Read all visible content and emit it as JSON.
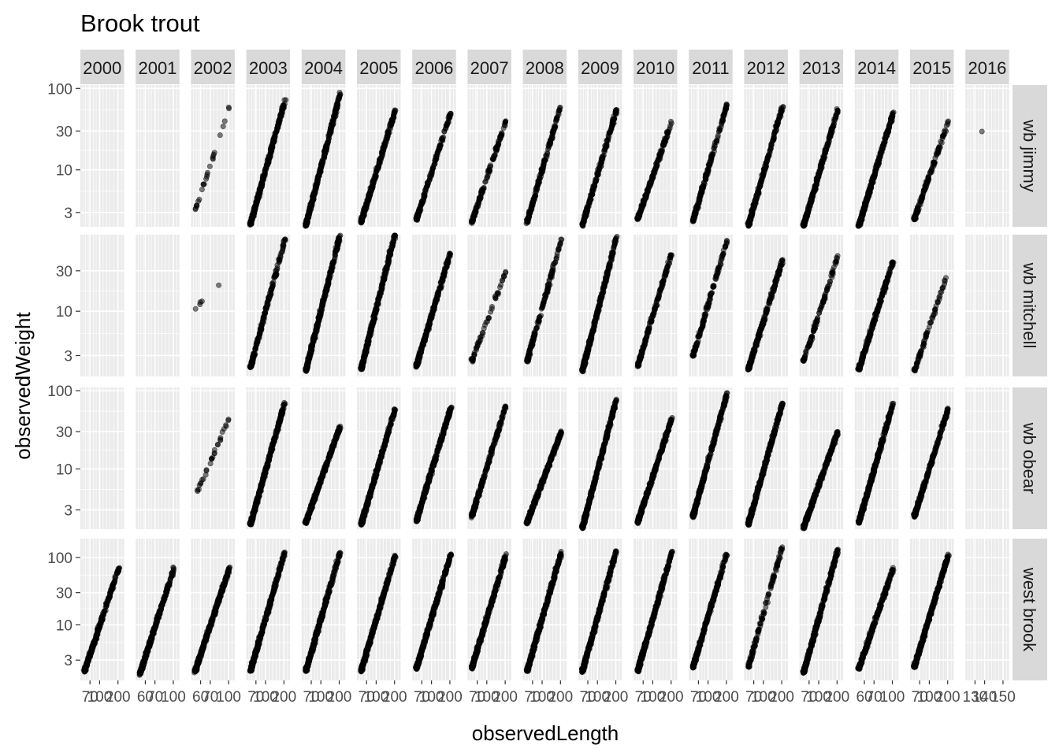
{
  "chart_data": {
    "type": "scatter",
    "title": "Brook trout",
    "xlabel": "observedLength",
    "ylabel": "observedWeight",
    "y_scale": "log10",
    "facet_columns": [
      "2000",
      "2001",
      "2002",
      "2003",
      "2004",
      "2005",
      "2006",
      "2007",
      "2008",
      "2009",
      "2010",
      "2011",
      "2012",
      "2013",
      "2014",
      "2015",
      "2016"
    ],
    "facet_rows": [
      "wb jimmy",
      "wb mitchell",
      "wb obear",
      "west brook"
    ],
    "row_y_ticks": [
      [
        "100",
        "30",
        "10",
        "3"
      ],
      [
        "30",
        "10",
        "3"
      ],
      [
        "100",
        "30",
        "10",
        "3"
      ],
      [
        "100",
        "30",
        "10",
        "3"
      ]
    ],
    "x_tick_labels": [
      "70",
      "100",
      "200",
      "70",
      "100",
      "200",
      "70",
      "100",
      "200",
      "70",
      "100",
      "200",
      "70",
      "100",
      "200",
      "70",
      "100",
      "200",
      "70",
      "100",
      "200",
      "70",
      "100",
      "200",
      "70",
      "100",
      "200",
      "70",
      "100",
      "200",
      "70",
      "100",
      "200",
      "70",
      "100",
      "200",
      "70",
      "100",
      "200",
      "70",
      "100",
      "200",
      "70",
      "100",
      "200",
      "70",
      "100",
      "200",
      "70",
      "100",
      "200",
      "70",
      "100",
      "200",
      "70",
      "100",
      "200",
      "70",
      "100",
      "200",
      "70",
      "100",
      "200",
      "70",
      "100",
      "200",
      "70",
      "100",
      "200",
      "70",
      "100",
      "200",
      "70",
      "100",
      "200",
      "70",
      "100",
      "200",
      "70",
      "100",
      "200",
      "70",
      "100",
      "200",
      "70",
      "100",
      "200",
      "70",
      "100",
      "200",
      "70",
      "100",
      "200",
      "70",
      "100",
      "200",
      "70",
      "100",
      "200",
      "70",
      "100",
      "200",
      "70",
      "100",
      "200",
      "70",
      "100",
      "200",
      "70",
      "100",
      "200",
      "70",
      "100",
      "200",
      "70",
      "100",
      "200",
      "70",
      "100",
      "200",
      "70",
      "100",
      "200",
      "70",
      "100",
      "200",
      "70",
      "100",
      "200",
      "70",
      "100",
      "200",
      "70",
      "100",
      "200",
      "70",
      "100",
      "200",
      "70",
      "100",
      "200",
      "70",
      "100",
      "200",
      "70",
      "100",
      "200",
      "70",
      "100",
      "200",
      "70",
      "100",
      "200",
      "70",
      "100",
      "200",
      "70",
      "100",
      "200",
      "70",
      "100",
      "200",
      "70",
      "100",
      "200",
      "70",
      "100",
      "200",
      "70",
      "100",
      "200",
      "70",
      "100",
      "200",
      "70",
      "100",
      "200",
      "70",
      "100",
      "200",
      "70",
      "100",
      "200",
      "70",
      "100",
      "200",
      "70",
      "100",
      "200",
      "70",
      "100",
      "200",
      "70",
      "100",
      "200",
      "70",
      "100",
      "200",
      "70",
      "100",
      "200",
      "70",
      "100",
      "200",
      "70",
      "100",
      "200",
      "70",
      "100",
      "200",
      "70",
      "100",
      "200",
      "70",
      "100",
      "200",
      "70",
      "100",
      "200",
      "70",
      "100",
      "200",
      "70",
      "100",
      "200",
      "70",
      "100",
      "200",
      "70",
      "100",
      "200",
      "70",
      "100",
      "200",
      "70",
      "100",
      "200",
      "70",
      "100",
      "200",
      "70",
      "100",
      "200",
      "70",
      "100",
      "200",
      "70",
      "100",
      "200",
      "70",
      "100",
      "200",
      "70",
      "100",
      "200",
      "70",
      "100",
      "200",
      "70",
      "100",
      "200",
      "70",
      "100",
      "200",
      "70",
      "100",
      "200",
      "70",
      "100",
      "200",
      "70",
      "100",
      "200",
      "70",
      "100",
      "200",
      "70",
      "100",
      "200",
      "70",
      "100",
      "200",
      "70",
      "100",
      "200",
      "70",
      "100",
      "200",
      "70",
      "100",
      "200",
      "70",
      "100",
      "200",
      "70",
      "100",
      "200",
      "70",
      "100",
      "200",
      "70",
      "100",
      "200",
      "70",
      "100",
      "200",
      "70",
      "100",
      "200",
      "70",
      "100",
      "200",
      "70",
      "100",
      "200",
      "70",
      "100",
      "200",
      "70",
      "100",
      "200",
      "70",
      "100",
      "200",
      "70",
      "100",
      "200",
      "70",
      "100",
      "200",
      "70",
      "100",
      "200",
      "70",
      "100",
      "200",
      "70",
      "100",
      "200",
      "70",
      "100",
      "200"
    ],
    "x_tick_text": [
      "70",
      "100",
      "200",
      "60",
      "70",
      "100",
      "60",
      "70",
      "100",
      "70",
      "100",
      "200",
      "70",
      "100",
      "200",
      "70",
      "100",
      "200",
      "70",
      "100",
      "200",
      "70",
      "100",
      "200",
      "70",
      "100",
      "200",
      "70",
      "100",
      "200",
      "70",
      "100",
      "200",
      "70",
      "100",
      "200",
      "70",
      "100",
      "200",
      "70",
      "100",
      "200",
      "60",
      "70",
      "100",
      "70",
      "100",
      "200",
      "130",
      "140",
      "150"
    ],
    "panels": [
      {
        "row": 0,
        "col": 2,
        "range": [
          3.2,
          60
        ],
        "n": 26
      },
      {
        "row": 0,
        "col": 3,
        "range": [
          2.2,
          70
        ],
        "n": 500
      },
      {
        "row": 0,
        "col": 4,
        "range": [
          2.1,
          85
        ],
        "n": 600
      },
      {
        "row": 0,
        "col": 5,
        "range": [
          2.3,
          55
        ],
        "n": 320
      },
      {
        "row": 0,
        "col": 6,
        "range": [
          2.5,
          50
        ],
        "n": 180
      },
      {
        "row": 0,
        "col": 7,
        "range": [
          2.3,
          40
        ],
        "n": 150
      },
      {
        "row": 0,
        "col": 8,
        "range": [
          2.3,
          65
        ],
        "n": 200
      },
      {
        "row": 0,
        "col": 9,
        "range": [
          2.1,
          55
        ],
        "n": 220
      },
      {
        "row": 0,
        "col": 10,
        "range": [
          2.5,
          40
        ],
        "n": 200
      },
      {
        "row": 0,
        "col": 11,
        "range": [
          2.4,
          65
        ],
        "n": 220
      },
      {
        "row": 0,
        "col": 12,
        "range": [
          2.1,
          60
        ],
        "n": 280
      },
      {
        "row": 0,
        "col": 13,
        "range": [
          2.1,
          55
        ],
        "n": 340
      },
      {
        "row": 0,
        "col": 14,
        "range": [
          2.1,
          50
        ],
        "n": 450
      },
      {
        "row": 0,
        "col": 15,
        "range": [
          2.5,
          40
        ],
        "n": 140
      },
      {
        "row": 0,
        "col": 16,
        "range": [
          29,
          29
        ],
        "n": 1
      },
      {
        "row": 1,
        "col": 2,
        "range": [
          11,
          27
        ],
        "n": 5
      },
      {
        "row": 1,
        "col": 3,
        "range": [
          2.2,
          70
        ],
        "n": 220
      },
      {
        "row": 1,
        "col": 4,
        "range": [
          2.0,
          80
        ],
        "n": 550
      },
      {
        "row": 1,
        "col": 5,
        "range": [
          2.1,
          85
        ],
        "n": 650
      },
      {
        "row": 1,
        "col": 6,
        "range": [
          2.3,
          50
        ],
        "n": 350
      },
      {
        "row": 1,
        "col": 7,
        "range": [
          2.6,
          30
        ],
        "n": 60
      },
      {
        "row": 1,
        "col": 8,
        "range": [
          2.6,
          70
        ],
        "n": 180
      },
      {
        "row": 1,
        "col": 9,
        "range": [
          2.0,
          75
        ],
        "n": 450
      },
      {
        "row": 1,
        "col": 10,
        "range": [
          2.3,
          50
        ],
        "n": 190
      },
      {
        "row": 1,
        "col": 11,
        "range": [
          3.0,
          70
        ],
        "n": 150
      },
      {
        "row": 1,
        "col": 12,
        "range": [
          2.1,
          40
        ],
        "n": 280
      },
      {
        "row": 1,
        "col": 13,
        "range": [
          2.6,
          45
        ],
        "n": 120
      },
      {
        "row": 1,
        "col": 14,
        "range": [
          2.1,
          40
        ],
        "n": 300
      },
      {
        "row": 1,
        "col": 15,
        "range": [
          2.0,
          30
        ],
        "n": 80
      },
      {
        "row": 2,
        "col": 2,
        "range": [
          4.5,
          45
        ],
        "n": 30
      },
      {
        "row": 2,
        "col": 3,
        "range": [
          2.0,
          70
        ],
        "n": 600
      },
      {
        "row": 2,
        "col": 4,
        "range": [
          2.1,
          35
        ],
        "n": 700
      },
      {
        "row": 2,
        "col": 5,
        "range": [
          2.0,
          60
        ],
        "n": 700
      },
      {
        "row": 2,
        "col": 6,
        "range": [
          2.2,
          60
        ],
        "n": 400
      },
      {
        "row": 2,
        "col": 7,
        "range": [
          2.5,
          65
        ],
        "n": 250
      },
      {
        "row": 2,
        "col": 8,
        "range": [
          2.1,
          30
        ],
        "n": 400
      },
      {
        "row": 2,
        "col": 9,
        "range": [
          1.8,
          80
        ],
        "n": 700
      },
      {
        "row": 2,
        "col": 10,
        "range": [
          2.1,
          45
        ],
        "n": 350
      },
      {
        "row": 2,
        "col": 11,
        "range": [
          2.5,
          95
        ],
        "n": 330
      },
      {
        "row": 2,
        "col": 12,
        "range": [
          2.0,
          70
        ],
        "n": 650
      },
      {
        "row": 2,
        "col": 13,
        "range": [
          1.8,
          30
        ],
        "n": 800
      },
      {
        "row": 2,
        "col": 14,
        "range": [
          2.1,
          70
        ],
        "n": 450
      },
      {
        "row": 2,
        "col": 15,
        "range": [
          2.5,
          60
        ],
        "n": 300
      },
      {
        "row": 3,
        "col": 0,
        "range": [
          2.1,
          70
        ],
        "n": 300
      },
      {
        "row": 3,
        "col": 1,
        "range": [
          1.9,
          70
        ],
        "n": 450
      },
      {
        "row": 3,
        "col": 2,
        "range": [
          2.1,
          70
        ],
        "n": 650
      },
      {
        "row": 3,
        "col": 3,
        "range": [
          2.1,
          120
        ],
        "n": 900
      },
      {
        "row": 3,
        "col": 4,
        "range": [
          2.1,
          120
        ],
        "n": 900
      },
      {
        "row": 3,
        "col": 5,
        "range": [
          2.1,
          110
        ],
        "n": 700
      },
      {
        "row": 3,
        "col": 6,
        "range": [
          2.3,
          110
        ],
        "n": 700
      },
      {
        "row": 3,
        "col": 7,
        "range": [
          2.3,
          110
        ],
        "n": 550
      },
      {
        "row": 3,
        "col": 8,
        "range": [
          2.1,
          120
        ],
        "n": 700
      },
      {
        "row": 3,
        "col": 9,
        "range": [
          2.1,
          130
        ],
        "n": 900
      },
      {
        "row": 3,
        "col": 10,
        "range": [
          2.1,
          120
        ],
        "n": 650
      },
      {
        "row": 3,
        "col": 11,
        "range": [
          2.4,
          120
        ],
        "n": 300
      },
      {
        "row": 3,
        "col": 12,
        "range": [
          2.4,
          150
        ],
        "n": 130
      },
      {
        "row": 3,
        "col": 13,
        "range": [
          2.0,
          130
        ],
        "n": 700
      },
      {
        "row": 3,
        "col": 14,
        "range": [
          2.3,
          70
        ],
        "n": 350
      },
      {
        "row": 3,
        "col": 15,
        "range": [
          2.4,
          110
        ],
        "n": 500
      }
    ]
  }
}
